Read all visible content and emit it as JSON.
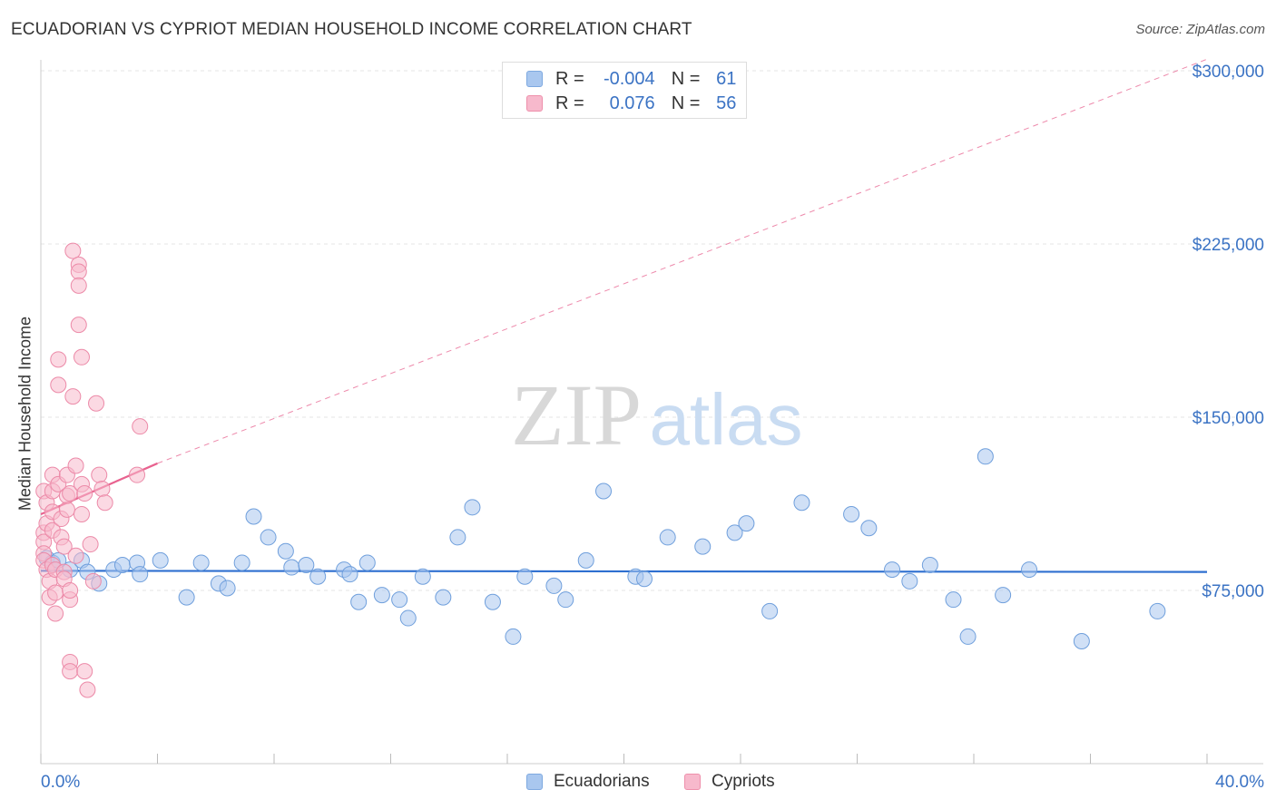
{
  "title": "ECUADORIAN VS CYPRIOT MEDIAN HOUSEHOLD INCOME CORRELATION CHART",
  "source": "Source: ZipAtlas.com",
  "watermark": {
    "zip": "ZIP",
    "atlas": "atlas"
  },
  "legend": {
    "rows": [
      {
        "r_label": "R =",
        "r_value": "-0.004",
        "n_label": "N =",
        "n_value": "61",
        "color": "#a9c7ef",
        "border": "#7ea9e0"
      },
      {
        "r_label": "R =",
        "r_value": "0.076",
        "n_label": "N =",
        "n_value": "56",
        "color": "#f7b9cc",
        "border": "#ee8fab"
      }
    ]
  },
  "bottom_legend": {
    "a": "Ecuadorians",
    "b": "Cypriots"
  },
  "axis": {
    "x_min_label": "0.0%",
    "x_max_label": "40.0%"
  },
  "chart_data": {
    "type": "scatter",
    "title": "ECUADORIAN VS CYPRIOT MEDIAN HOUSEHOLD INCOME CORRELATION CHART",
    "xlabel": "",
    "ylabel": "Median Household Income",
    "xlim": [
      0,
      40
    ],
    "ylim": [
      0,
      310000
    ],
    "y_ticks": [
      75000,
      150000,
      225000,
      300000
    ],
    "y_tick_labels": [
      "$75,000",
      "$150,000",
      "$225,000",
      "$300,000"
    ],
    "grid": "horizontal dashed",
    "legend_position": "top-center",
    "series": [
      {
        "name": "Ecuadorians",
        "color": "#a9c7ef",
        "stroke": "#6f9fdc",
        "trend": {
          "x": [
            0,
            40
          ],
          "y": [
            83500,
            83000
          ],
          "style": "solid",
          "color": "#2e6fd0"
        },
        "points": [
          [
            0.2,
            89000
          ],
          [
            0.4,
            87000
          ],
          [
            0.6,
            88000
          ],
          [
            1.0,
            84000
          ],
          [
            1.4,
            88000
          ],
          [
            1.6,
            83000
          ],
          [
            2.0,
            78000
          ],
          [
            2.5,
            84000
          ],
          [
            2.8,
            86000
          ],
          [
            3.3,
            87000
          ],
          [
            3.4,
            82000
          ],
          [
            4.1,
            88000
          ],
          [
            5.0,
            72000
          ],
          [
            5.5,
            87000
          ],
          [
            6.1,
            78000
          ],
          [
            6.4,
            76000
          ],
          [
            6.9,
            87000
          ],
          [
            7.3,
            107000
          ],
          [
            7.8,
            98000
          ],
          [
            8.4,
            92000
          ],
          [
            8.6,
            85000
          ],
          [
            9.1,
            86000
          ],
          [
            9.5,
            81000
          ],
          [
            10.4,
            84000
          ],
          [
            10.6,
            82000
          ],
          [
            10.9,
            70000
          ],
          [
            11.2,
            87000
          ],
          [
            11.7,
            73000
          ],
          [
            12.3,
            71000
          ],
          [
            12.6,
            63000
          ],
          [
            13.1,
            81000
          ],
          [
            13.8,
            72000
          ],
          [
            14.3,
            98000
          ],
          [
            14.8,
            111000
          ],
          [
            15.5,
            70000
          ],
          [
            16.2,
            55000
          ],
          [
            16.6,
            81000
          ],
          [
            17.6,
            77000
          ],
          [
            18.0,
            71000
          ],
          [
            18.7,
            88000
          ],
          [
            19.3,
            118000
          ],
          [
            20.4,
            81000
          ],
          [
            20.7,
            80000
          ],
          [
            21.5,
            98000
          ],
          [
            22.7,
            94000
          ],
          [
            23.8,
            100000
          ],
          [
            24.2,
            104000
          ],
          [
            25.0,
            66000
          ],
          [
            26.1,
            113000
          ],
          [
            27.8,
            108000
          ],
          [
            28.4,
            102000
          ],
          [
            29.2,
            84000
          ],
          [
            29.8,
            79000
          ],
          [
            30.5,
            86000
          ],
          [
            31.3,
            71000
          ],
          [
            31.8,
            55000
          ],
          [
            32.4,
            133000
          ],
          [
            33.0,
            73000
          ],
          [
            33.9,
            84000
          ],
          [
            35.7,
            53000
          ],
          [
            38.3,
            66000
          ]
        ]
      },
      {
        "name": "Cypriots",
        "color": "#f7b9cc",
        "stroke": "#ec8aa8",
        "trend": {
          "x": [
            0,
            4.0
          ],
          "y": [
            108000,
            130000
          ],
          "style": "solid",
          "color": "#e8628f",
          "extension": {
            "x": [
              4.0,
              40
            ],
            "y": [
              130000,
              305000
            ],
            "style": "dashed"
          }
        },
        "points": [
          [
            0.1,
            118000
          ],
          [
            0.1,
            100000
          ],
          [
            0.1,
            96000
          ],
          [
            0.1,
            91000
          ],
          [
            0.1,
            88000
          ],
          [
            0.2,
            113000
          ],
          [
            0.2,
            104000
          ],
          [
            0.2,
            84000
          ],
          [
            0.3,
            79000
          ],
          [
            0.3,
            72000
          ],
          [
            0.4,
            125000
          ],
          [
            0.4,
            118000
          ],
          [
            0.4,
            109000
          ],
          [
            0.4,
            101000
          ],
          [
            0.4,
            86000
          ],
          [
            0.5,
            65000
          ],
          [
            0.5,
            74000
          ],
          [
            0.5,
            84000
          ],
          [
            0.6,
            175000
          ],
          [
            0.6,
            164000
          ],
          [
            0.6,
            121000
          ],
          [
            0.7,
            106000
          ],
          [
            0.7,
            98000
          ],
          [
            0.8,
            83000
          ],
          [
            0.8,
            80000
          ],
          [
            0.8,
            94000
          ],
          [
            0.9,
            110000
          ],
          [
            0.9,
            125000
          ],
          [
            0.9,
            116000
          ],
          [
            1.0,
            71000
          ],
          [
            1.0,
            44000
          ],
          [
            1.0,
            40000
          ],
          [
            1.0,
            75000
          ],
          [
            1.0,
            117000
          ],
          [
            1.1,
            222000
          ],
          [
            1.1,
            159000
          ],
          [
            1.2,
            90000
          ],
          [
            1.2,
            129000
          ],
          [
            1.3,
            216000
          ],
          [
            1.3,
            213000
          ],
          [
            1.3,
            207000
          ],
          [
            1.3,
            190000
          ],
          [
            1.4,
            176000
          ],
          [
            1.4,
            108000
          ],
          [
            1.4,
            121000
          ],
          [
            1.5,
            117000
          ],
          [
            1.5,
            40000
          ],
          [
            1.6,
            32000
          ],
          [
            1.7,
            95000
          ],
          [
            1.8,
            79000
          ],
          [
            1.9,
            156000
          ],
          [
            2.0,
            125000
          ],
          [
            2.1,
            119000
          ],
          [
            2.2,
            113000
          ],
          [
            3.3,
            125000
          ],
          [
            3.4,
            146000
          ]
        ]
      }
    ]
  }
}
